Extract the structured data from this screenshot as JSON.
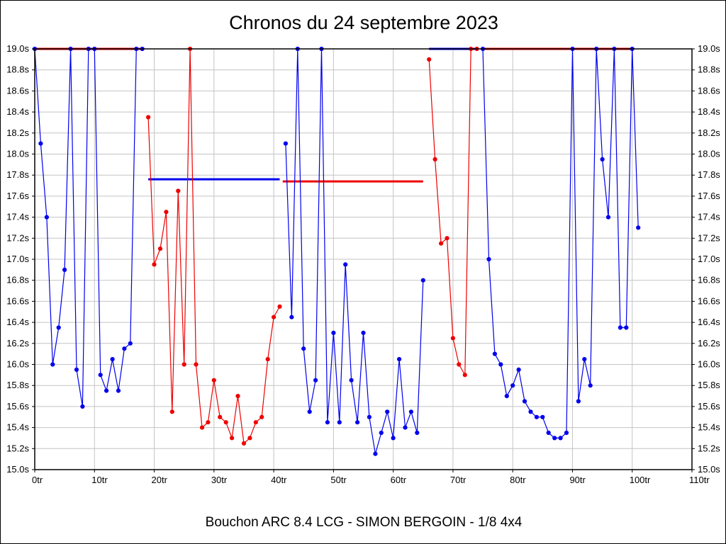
{
  "chart_data": {
    "type": "line",
    "title": "Chronos du 24 septembre 2023",
    "caption": "Bouchon ARC 8.4 LCG - SIMON BERGOIN - 1/8 4x4",
    "xlabel": "",
    "ylabel": "",
    "x_unit": "tr",
    "y_unit": "s",
    "xlim": [
      0,
      110
    ],
    "ylim": [
      15.0,
      19.0
    ],
    "x_tick_step": 10,
    "y_tick_step": 0.2,
    "grid": true,
    "grid_color": "#c4c4c4",
    "frame_color": "#000000",
    "x_ticks": [
      "0tr",
      "10tr",
      "20tr",
      "30tr",
      "40tr",
      "50tr",
      "60tr",
      "70tr",
      "80tr",
      "90tr",
      "100tr",
      "110tr"
    ],
    "y_ticks": [
      "19.0s",
      "18.8s",
      "18.6s",
      "18.4s",
      "18.2s",
      "18.0s",
      "17.8s",
      "17.6s",
      "17.4s",
      "17.2s",
      "17.0s",
      "16.8s",
      "16.6s",
      "16.4s",
      "16.2s",
      "16.0s",
      "15.8s",
      "15.6s",
      "15.4s",
      "15.2s",
      "15.0s"
    ],
    "series": [
      {
        "name": "blue",
        "color": "#0000ee",
        "stints": [
          [
            [
              0,
              19.0
            ],
            [
              1,
              18.1
            ],
            [
              2,
              17.4
            ],
            [
              3,
              16.0
            ],
            [
              4,
              16.35
            ],
            [
              5,
              16.9
            ],
            [
              6,
              19.0
            ],
            [
              7,
              15.95
            ],
            [
              8,
              15.6
            ],
            [
              9,
              19.0
            ],
            [
              10,
              19.0
            ],
            [
              11,
              15.9
            ],
            [
              12,
              15.75
            ],
            [
              13,
              16.05
            ],
            [
              14,
              15.75
            ],
            [
              15,
              16.15
            ],
            [
              16,
              16.2
            ],
            [
              17,
              19.0
            ],
            [
              18,
              19.0
            ]
          ],
          [
            [
              42,
              18.1
            ],
            [
              43,
              16.45
            ],
            [
              44,
              19.0
            ],
            [
              45,
              16.15
            ],
            [
              46,
              15.55
            ],
            [
              47,
              15.85
            ],
            [
              48,
              19.0
            ],
            [
              49,
              15.45
            ],
            [
              50,
              16.3
            ],
            [
              51,
              15.45
            ],
            [
              52,
              16.95
            ],
            [
              53,
              15.85
            ],
            [
              54,
              15.45
            ],
            [
              55,
              16.3
            ],
            [
              56,
              15.5
            ],
            [
              57,
              15.15
            ],
            [
              58,
              15.35
            ],
            [
              59,
              15.55
            ],
            [
              60,
              15.3
            ],
            [
              61,
              16.05
            ],
            [
              62,
              15.4
            ],
            [
              63,
              15.55
            ],
            [
              64,
              15.35
            ],
            [
              65,
              16.8
            ]
          ],
          [
            [
              75,
              19.0
            ],
            [
              76,
              17.0
            ],
            [
              77,
              16.1
            ],
            [
              78,
              16.0
            ],
            [
              79,
              15.7
            ],
            [
              80,
              15.8
            ],
            [
              81,
              15.95
            ],
            [
              82,
              15.65
            ],
            [
              83,
              15.55
            ],
            [
              84,
              15.5
            ],
            [
              85,
              15.5
            ],
            [
              86,
              15.35
            ],
            [
              87,
              15.3
            ],
            [
              88,
              15.3
            ],
            [
              89,
              15.35
            ],
            [
              90,
              19.0
            ],
            [
              91,
              15.65
            ],
            [
              92,
              16.05
            ],
            [
              93,
              15.8
            ],
            [
              94,
              19.0
            ],
            [
              95,
              17.95
            ],
            [
              96,
              17.4
            ],
            [
              97,
              19.0
            ],
            [
              98,
              16.35
            ],
            [
              99,
              16.35
            ],
            [
              100,
              19.0
            ],
            [
              101,
              17.3
            ]
          ]
        ]
      },
      {
        "name": "red",
        "color": "#ee0000",
        "stints": [
          [
            [
              19,
              18.35
            ],
            [
              20,
              16.95
            ],
            [
              21,
              17.1
            ],
            [
              22,
              17.45
            ],
            [
              23,
              15.55
            ],
            [
              24,
              17.65
            ],
            [
              25,
              16.0
            ],
            [
              26,
              19.0
            ],
            [
              27,
              16.0
            ],
            [
              28,
              15.4
            ],
            [
              29,
              15.45
            ],
            [
              30,
              15.85
            ],
            [
              31,
              15.5
            ],
            [
              32,
              15.45
            ],
            [
              33,
              15.3
            ],
            [
              34,
              15.7
            ],
            [
              35,
              15.25
            ],
            [
              36,
              15.3
            ],
            [
              37,
              15.45
            ],
            [
              38,
              15.5
            ],
            [
              39,
              16.05
            ],
            [
              40,
              16.45
            ],
            [
              41,
              16.55
            ]
          ],
          [
            [
              66,
              18.9
            ],
            [
              67,
              17.95
            ],
            [
              68,
              17.15
            ],
            [
              69,
              17.2
            ],
            [
              70,
              16.25
            ],
            [
              71,
              16.0
            ],
            [
              72,
              15.9
            ],
            [
              73,
              19.0
            ],
            [
              74,
              19.0
            ]
          ]
        ]
      }
    ],
    "average_segments": [
      {
        "color": "#ee0000",
        "y": 19.0,
        "x1": 0,
        "x2": 18
      },
      {
        "color": "#0000ee",
        "y": 17.76,
        "x1": 19,
        "x2": 41
      },
      {
        "color": "#ee0000",
        "y": 17.74,
        "x1": 41.5,
        "x2": 65
      },
      {
        "color": "#0000ee",
        "y": 19.0,
        "x1": 66,
        "x2": 74
      },
      {
        "color": "#ee0000",
        "y": 19.0,
        "x1": 75,
        "x2": 100
      }
    ]
  }
}
